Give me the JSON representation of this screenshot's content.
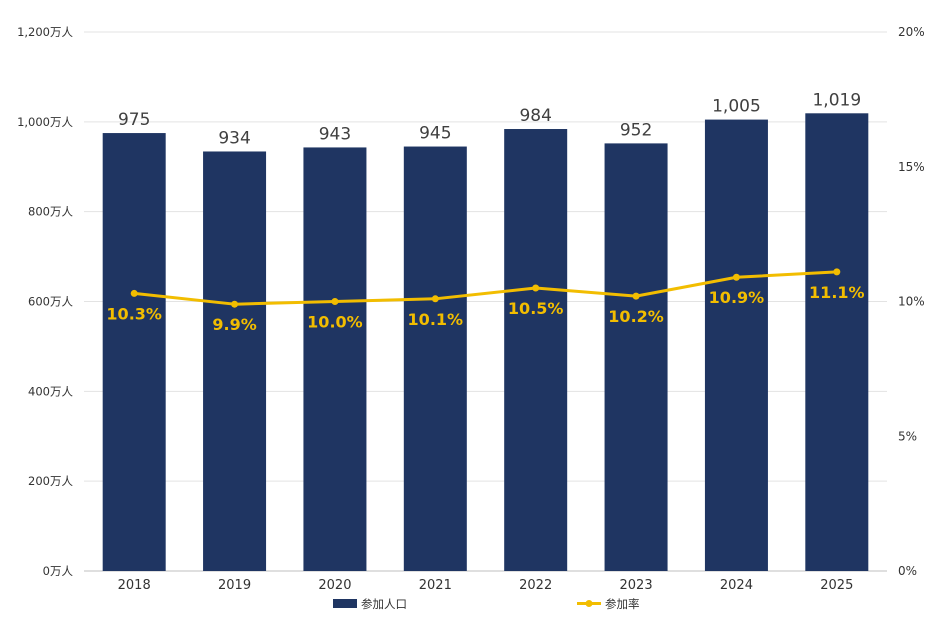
{
  "chart_data": {
    "type": "bar",
    "categories": [
      "2018",
      "2019",
      "2020",
      "2021",
      "2022",
      "2023",
      "2024",
      "2025"
    ],
    "series": [
      {
        "name": "参加人口",
        "type": "bar",
        "axis": "left",
        "values": [
          975,
          934,
          943,
          945,
          984,
          952,
          1005,
          1019
        ],
        "data_labels": [
          "975",
          "934",
          "943",
          "945",
          "984",
          "952",
          "1,005",
          "1,019"
        ],
        "color": "#1f3562"
      },
      {
        "name": "参加率",
        "type": "line",
        "axis": "right",
        "values": [
          10.3,
          9.9,
          10.0,
          10.1,
          10.5,
          10.2,
          10.9,
          11.1
        ],
        "data_labels": [
          "10.3%",
          "9.9%",
          "10.0%",
          "10.1%",
          "10.5%",
          "10.2%",
          "10.9%",
          "11.1%"
        ],
        "color": "#f2bd00"
      }
    ],
    "y_left": {
      "lim": [
        0,
        1200
      ],
      "ticks": [
        0,
        200,
        400,
        600,
        800,
        1000,
        1200
      ],
      "tick_labels": [
        "0万人",
        "200万人",
        "400万人",
        "600万人",
        "800万人",
        "1,000万人",
        "1,200万人"
      ]
    },
    "y_right": {
      "lim": [
        0,
        20
      ],
      "ticks": [
        0,
        5,
        10,
        15,
        20
      ],
      "tick_labels": [
        "0%",
        "5%",
        "10%",
        "15%",
        "20%"
      ]
    },
    "grid": true,
    "legend_position": "bottom"
  }
}
